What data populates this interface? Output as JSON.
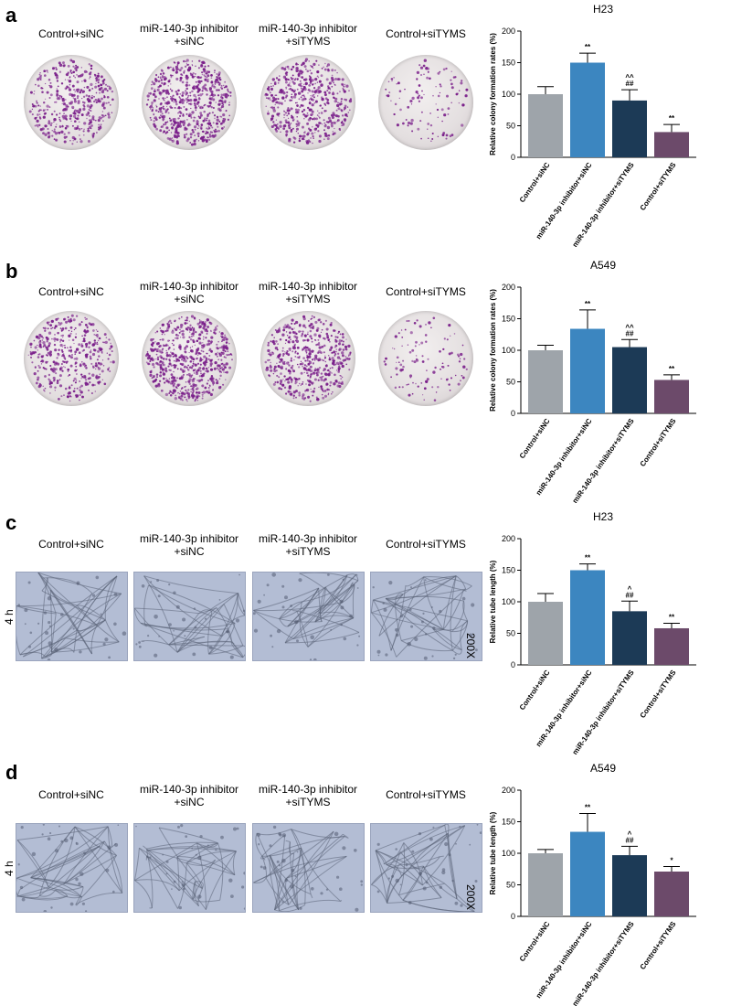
{
  "panels": [
    {
      "letter": "a",
      "image_type": "colony",
      "image_labels": [
        "Control+siNC",
        "miR-140-3p inhibitor\n+siNC",
        "miR-140-3p inhibitor\n+siTYMS",
        "Control+siTYMS"
      ]
    },
    {
      "letter": "b",
      "image_type": "colony",
      "image_labels": [
        "Control+siNC",
        "miR-140-3p inhibitor\n+siNC",
        "miR-140-3p inhibitor\n+siTYMS",
        "Control+siTYMS"
      ]
    },
    {
      "letter": "c",
      "image_type": "tube",
      "time_label": "4 h",
      "magnification": "200X",
      "image_labels": [
        "Control+siNC",
        "miR-140-3p inhibitor\n+siNC",
        "miR-140-3p inhibitor\n+siTYMS",
        "Control+siTYMS"
      ]
    },
    {
      "letter": "d",
      "image_type": "tube",
      "time_label": "4 h",
      "magnification": "200X",
      "image_labels": [
        "Control+siNC",
        "miR-140-3p inhibitor\n+siNC",
        "miR-140-3p inhibitor\n+siTYMS",
        "Control+siTYMS"
      ]
    }
  ],
  "colors": {
    "bars": [
      "#9ea4aa",
      "#3c86c0",
      "#1c3a56",
      "#6c4a6a"
    ],
    "colony_stain": "#7a1f8a",
    "tube_background": "#b3bdd4"
  },
  "chart_data": [
    {
      "type": "bar",
      "title": "H23",
      "ylabel": "Relative colony formation rates (%)",
      "categories": [
        "Control+siNC",
        "miR-140-3p inhibitor+siNC",
        "miR-140-3p inhibitor+siTYMS",
        "Control+siTYMS"
      ],
      "values": [
        100,
        150,
        90,
        40
      ],
      "errors": [
        12,
        15,
        17,
        12
      ],
      "annotations": [
        "",
        "**",
        "^^\n##",
        "**"
      ],
      "ylim": [
        0,
        200
      ],
      "yticks": [
        0,
        50,
        100,
        150,
        200
      ]
    },
    {
      "type": "bar",
      "title": "A549",
      "ylabel": "Relative colony formation rates (%)",
      "categories": [
        "Control+siNC",
        "miR-140-3p inhibitor+siNC",
        "miR-140-3p inhibitor+siTYMS",
        "Control+siTYMS"
      ],
      "values": [
        100,
        134,
        105,
        53
      ],
      "errors": [
        8,
        30,
        12,
        8
      ],
      "annotations": [
        "",
        "**",
        "^^\n##",
        "**"
      ],
      "ylim": [
        0,
        200
      ],
      "yticks": [
        0,
        50,
        100,
        150,
        200
      ]
    },
    {
      "type": "bar",
      "title": "H23",
      "ylabel": "Relative tube length (%)",
      "categories": [
        "Control+siNC",
        "miR-140-3p inhibitor+siNC",
        "miR-140-3p inhibitor+siTYMS",
        "Control+siTYMS"
      ],
      "values": [
        100,
        150,
        85,
        58
      ],
      "errors": [
        13,
        10,
        16,
        8
      ],
      "annotations": [
        "",
        "**",
        "^\n##",
        "**"
      ],
      "ylim": [
        0,
        200
      ],
      "yticks": [
        0,
        50,
        100,
        150,
        200
      ]
    },
    {
      "type": "bar",
      "title": "A549",
      "ylabel": "Relative tube length (%)",
      "categories": [
        "Control+siNC",
        "miR-140-3p inhibitor+siNC",
        "miR-140-3p inhibitor+siTYMS",
        "Control+siTYMS"
      ],
      "values": [
        100,
        134,
        97,
        71
      ],
      "errors": [
        6,
        29,
        14,
        8
      ],
      "annotations": [
        "",
        "**",
        "^\n##",
        "*"
      ],
      "ylim": [
        0,
        200
      ],
      "yticks": [
        0,
        50,
        100,
        150,
        200
      ]
    }
  ]
}
